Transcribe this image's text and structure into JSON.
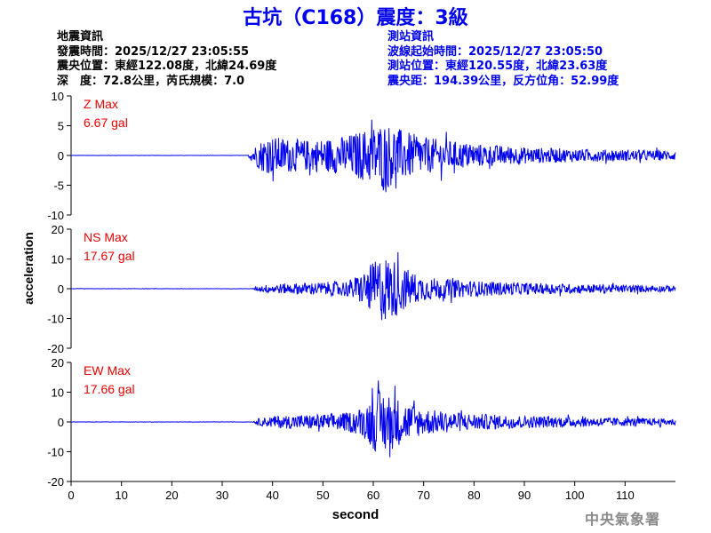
{
  "header": {
    "title": "古坑（C168）震度：3級"
  },
  "earthquake_info": {
    "heading": "地震資訊",
    "time": "發震時間：2025/12/27 23:05:55",
    "epicenter": "震央位置：東經122.08度，北緯24.69度",
    "depth_magnitude": "深　度：72.8公里，芮氏規模：7.0"
  },
  "station_info": {
    "heading": "測站資訊",
    "wave_start": "波線起始時間：2025/12/27 23:05:50",
    "location": "測站位置：東經120.55度，北緯23.63度",
    "distance": "震央距：194.39公里，反方位角：52.99度"
  },
  "footer": {
    "agency": "中央氣象署"
  },
  "colors": {
    "trace": "#0000ee",
    "max_label": "#ee0000",
    "title": "#0000ee"
  },
  "chart_data": {
    "type": "line",
    "xlabel": "second",
    "ylabel": "acceleration",
    "xlim": [
      0,
      120
    ],
    "xticks": [
      0,
      10,
      20,
      30,
      40,
      50,
      60,
      70,
      80,
      90,
      100,
      110
    ],
    "grid": false,
    "panels": [
      {
        "name": "Z",
        "label": "Z Max",
        "max_text": "6.67 gal",
        "max": 6.67,
        "ylim": [
          -10,
          10
        ],
        "yticks": [
          -10,
          -5,
          0,
          5,
          10
        ],
        "envelope": [
          [
            0,
            0.02
          ],
          [
            35,
            0.02
          ],
          [
            36,
            1.2
          ],
          [
            38,
            2.8
          ],
          [
            40,
            3.2
          ],
          [
            43,
            2.9
          ],
          [
            46,
            2.6
          ],
          [
            50,
            2.8
          ],
          [
            54,
            3.2
          ],
          [
            58,
            4.3
          ],
          [
            60,
            5.0
          ],
          [
            62,
            5.6
          ],
          [
            64,
            5.0
          ],
          [
            66,
            4.2
          ],
          [
            70,
            3.1
          ],
          [
            75,
            2.5
          ],
          [
            80,
            2.0
          ],
          [
            85,
            1.7
          ],
          [
            90,
            1.4
          ],
          [
            100,
            1.1
          ],
          [
            110,
            0.95
          ],
          [
            120,
            0.8
          ]
        ]
      },
      {
        "name": "NS",
        "label": "NS Max",
        "max_text": "17.67 gal",
        "max": 17.67,
        "ylim": [
          -20,
          20
        ],
        "yticks": [
          -20,
          -10,
          0,
          10,
          20
        ],
        "envelope": [
          [
            0,
            0.05
          ],
          [
            36,
            0.05
          ],
          [
            37,
            0.9
          ],
          [
            40,
            1.6
          ],
          [
            45,
            1.9
          ],
          [
            50,
            2.2
          ],
          [
            55,
            2.8
          ],
          [
            58,
            5.5
          ],
          [
            60,
            9.0
          ],
          [
            62,
            11.5
          ],
          [
            64,
            10.0
          ],
          [
            66,
            7.5
          ],
          [
            68,
            5.5
          ],
          [
            70,
            4.0
          ],
          [
            75,
            3.2
          ],
          [
            80,
            2.6
          ],
          [
            90,
            2.0
          ],
          [
            100,
            1.6
          ],
          [
            110,
            1.3
          ],
          [
            120,
            1.0
          ]
        ]
      },
      {
        "name": "EW",
        "label": "EW Max",
        "max_text": "17.66 gal",
        "max": 17.66,
        "ylim": [
          -20,
          20
        ],
        "yticks": [
          -20,
          -10,
          0,
          10,
          20
        ],
        "envelope": [
          [
            0,
            0.05
          ],
          [
            36,
            0.05
          ],
          [
            37,
            1.1
          ],
          [
            40,
            2.0
          ],
          [
            45,
            2.4
          ],
          [
            50,
            2.6
          ],
          [
            55,
            3.2
          ],
          [
            58,
            5.0
          ],
          [
            60,
            9.5
          ],
          [
            62,
            11.0
          ],
          [
            64,
            9.0
          ],
          [
            66,
            7.0
          ],
          [
            68,
            5.5
          ],
          [
            70,
            4.5
          ],
          [
            75,
            3.5
          ],
          [
            80,
            2.8
          ],
          [
            90,
            2.1
          ],
          [
            100,
            1.7
          ],
          [
            110,
            1.4
          ],
          [
            120,
            1.1
          ]
        ]
      }
    ]
  }
}
